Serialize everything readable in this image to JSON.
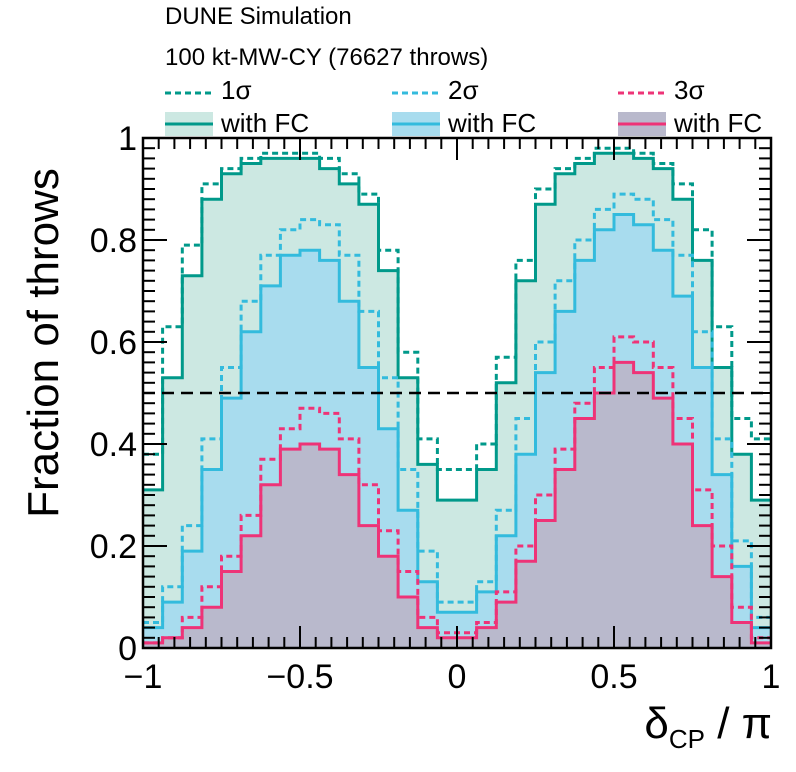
{
  "chart_data": {
    "type": "histogram",
    "header": {
      "line1": "DUNE Simulation",
      "line2": "100 kt-MW-CY (76627 throws)"
    },
    "xlabel": {
      "main": "δ",
      "sub": "CP",
      "rest": " / π"
    },
    "ylabel": "Fraction of throws",
    "xlim": [
      -1,
      1
    ],
    "ylim": [
      0,
      1
    ],
    "xticks": [
      -1,
      -0.5,
      0,
      0.5,
      1
    ],
    "xtick_labels": [
      "−1",
      "−0.5",
      "0",
      "0.5",
      "1"
    ],
    "yticks": [
      0,
      0.2,
      0.4,
      0.6,
      0.8,
      1
    ],
    "ytick_labels": [
      "0",
      "0.2",
      "0.4",
      "0.6",
      "0.8",
      "1"
    ],
    "grid": false,
    "legend_placement": "top",
    "reference_line": {
      "y": 0.5,
      "style": "dashed"
    },
    "bin_edges": [
      -1,
      -0.9375,
      -0.875,
      -0.8125,
      -0.75,
      -0.6875,
      -0.625,
      -0.5625,
      -0.5,
      -0.4375,
      -0.375,
      -0.3125,
      -0.25,
      -0.1875,
      -0.125,
      -0.0625,
      0,
      0.0625,
      0.125,
      0.1875,
      0.25,
      0.3125,
      0.375,
      0.4375,
      0.5,
      0.5625,
      0.625,
      0.6875,
      0.75,
      0.8125,
      0.875,
      0.9375,
      1
    ],
    "series": [
      {
        "name": "1σ",
        "legend_label": "1σ",
        "style": "dashed",
        "color": "#00998a",
        "values": [
          0.38,
          0.63,
          0.79,
          0.91,
          0.94,
          0.96,
          0.97,
          0.97,
          0.97,
          0.96,
          0.93,
          0.89,
          0.78,
          0.58,
          0.41,
          0.35,
          0.35,
          0.4,
          0.57,
          0.76,
          0.9,
          0.94,
          0.96,
          0.98,
          0.98,
          0.97,
          0.95,
          0.91,
          0.82,
          0.63,
          0.45,
          0.41
        ]
      },
      {
        "name": "1σ with FC",
        "legend_label": "with FC",
        "style": "solid",
        "fill": "#cce8e2",
        "color": "#00998a",
        "values": [
          0.31,
          0.53,
          0.73,
          0.88,
          0.93,
          0.95,
          0.96,
          0.96,
          0.96,
          0.94,
          0.91,
          0.87,
          0.74,
          0.53,
          0.36,
          0.29,
          0.29,
          0.35,
          0.52,
          0.72,
          0.87,
          0.93,
          0.95,
          0.97,
          0.97,
          0.96,
          0.94,
          0.88,
          0.76,
          0.55,
          0.38,
          0.29
        ]
      },
      {
        "name": "2σ",
        "legend_label": "2σ",
        "style": "dashed",
        "color": "#33bbdd",
        "values": [
          0.05,
          0.12,
          0.24,
          0.41,
          0.55,
          0.68,
          0.77,
          0.82,
          0.84,
          0.83,
          0.77,
          0.66,
          0.53,
          0.35,
          0.19,
          0.09,
          0.09,
          0.13,
          0.27,
          0.45,
          0.6,
          0.72,
          0.8,
          0.86,
          0.89,
          0.88,
          0.84,
          0.77,
          0.62,
          0.41,
          0.21,
          0.06
        ]
      },
      {
        "name": "2σ with FC",
        "legend_label": "with FC",
        "style": "solid",
        "fill": "#a8dcee",
        "color": "#33bbdd",
        "values": [
          0.04,
          0.09,
          0.19,
          0.35,
          0.49,
          0.62,
          0.71,
          0.77,
          0.78,
          0.76,
          0.68,
          0.55,
          0.43,
          0.27,
          0.13,
          0.07,
          0.07,
          0.11,
          0.22,
          0.38,
          0.54,
          0.66,
          0.76,
          0.82,
          0.85,
          0.83,
          0.78,
          0.69,
          0.55,
          0.34,
          0.16,
          0.04
        ]
      },
      {
        "name": "3σ",
        "legend_label": "3σ",
        "style": "dashed",
        "color": "#ee3377",
        "values": [
          0.01,
          0.02,
          0.06,
          0.12,
          0.18,
          0.26,
          0.37,
          0.43,
          0.47,
          0.46,
          0.41,
          0.32,
          0.23,
          0.15,
          0.06,
          0.03,
          0.03,
          0.05,
          0.11,
          0.2,
          0.3,
          0.39,
          0.48,
          0.55,
          0.61,
          0.6,
          0.55,
          0.45,
          0.31,
          0.2,
          0.08,
          0.02
        ]
      },
      {
        "name": "3σ with FC",
        "legend_label": "with FC",
        "style": "solid",
        "fill": "#b9b9cc",
        "color": "#ee3377",
        "values": [
          0.01,
          0.02,
          0.04,
          0.08,
          0.15,
          0.22,
          0.32,
          0.39,
          0.4,
          0.39,
          0.34,
          0.24,
          0.18,
          0.1,
          0.04,
          0.02,
          0.02,
          0.04,
          0.09,
          0.17,
          0.25,
          0.35,
          0.45,
          0.5,
          0.56,
          0.54,
          0.49,
          0.4,
          0.24,
          0.14,
          0.05,
          0.01
        ]
      }
    ]
  }
}
